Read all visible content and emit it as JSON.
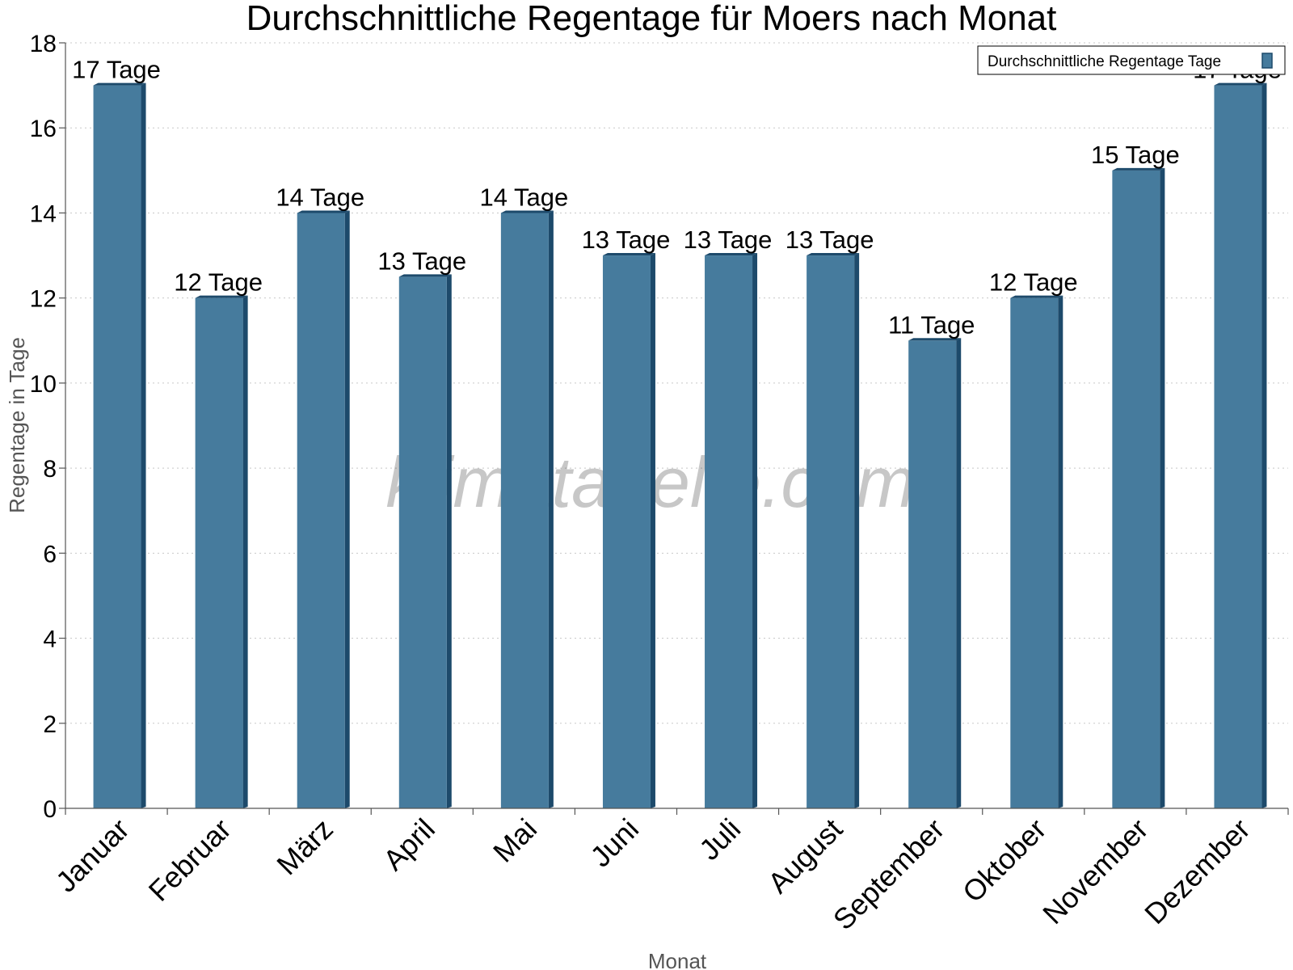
{
  "chart_data": {
    "type": "bar",
    "title": "Durchschnittliche Regentage für Moers nach Monat",
    "xlabel": "Monat",
    "ylabel": "Regentage in Tage",
    "ylim": [
      0,
      18
    ],
    "yticks": [
      0,
      2,
      4,
      6,
      8,
      10,
      12,
      14,
      16,
      18
    ],
    "grid": true,
    "legend_position": "top-right",
    "categories": [
      "Januar",
      "Februar",
      "März",
      "April",
      "Mai",
      "Juni",
      "Juli",
      "August",
      "September",
      "Oktober",
      "November",
      "Dezember"
    ],
    "series": [
      {
        "name": "Durchschnittliche Regentage Tage",
        "values": [
          17,
          12,
          14,
          12.5,
          14,
          13,
          13,
          13,
          11,
          12,
          15,
          17
        ],
        "data_labels": [
          "17 Tage",
          "12 Tage",
          "14 Tage",
          "13 Tage",
          "14 Tage",
          "13 Tage",
          "13 Tage",
          "13 Tage",
          "11 Tage",
          "12 Tage",
          "15 Tage",
          "17 Tage"
        ],
        "color": "#467b9d",
        "side_color": "#1d4a6b"
      }
    ]
  },
  "watermark": "klimatabelle.com"
}
